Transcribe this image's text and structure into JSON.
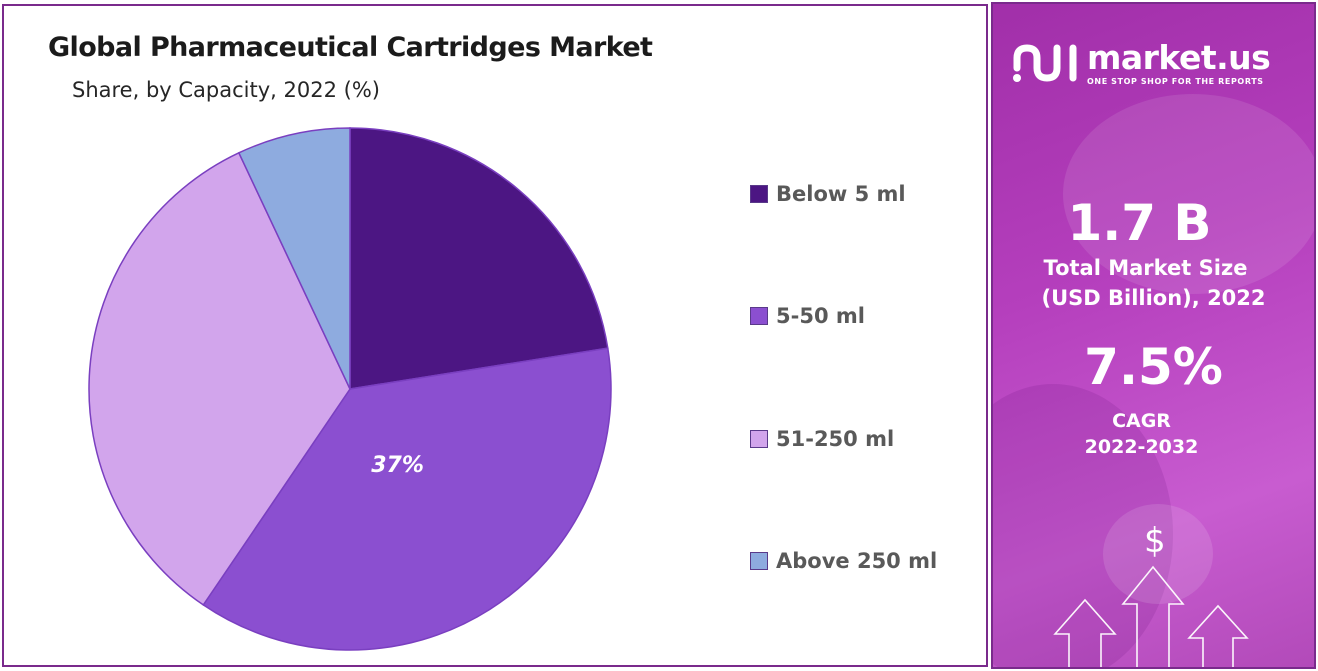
{
  "chart_data": {
    "type": "pie",
    "title": "Global Pharmaceutical Cartridges Market",
    "subtitle": "Share, by Capacity, 2022 (%)",
    "categories": [
      "Below 5 ml",
      "5-50 ml",
      "51-250 ml",
      "Above 250 ml"
    ],
    "values": [
      22.5,
      37,
      33.5,
      7
    ],
    "colors": [
      "#4c1683",
      "#8b4fd0",
      "#d2a5ec",
      "#8eabdf"
    ],
    "data_labels": [
      "",
      "37%",
      "",
      ""
    ],
    "legend_position": "right"
  },
  "side_panel": {
    "brand_name": "market.us",
    "brand_tagline": "ONE STOP SHOP FOR THE REPORTS",
    "market_size_value": "1.7 B",
    "market_size_label_line1": "Total Market Size",
    "market_size_label_line2": "(USD Billion), 2022",
    "cagr_value": "7.5%",
    "cagr_label": "CAGR",
    "cagr_period": "2022-2032",
    "icon_dollar": "$",
    "logo_icon": "market-us-logo-icon",
    "decor_icons": [
      "dollar-coin-icon",
      "up-arrow-icon"
    ],
    "background_color": "#b53fbd"
  }
}
